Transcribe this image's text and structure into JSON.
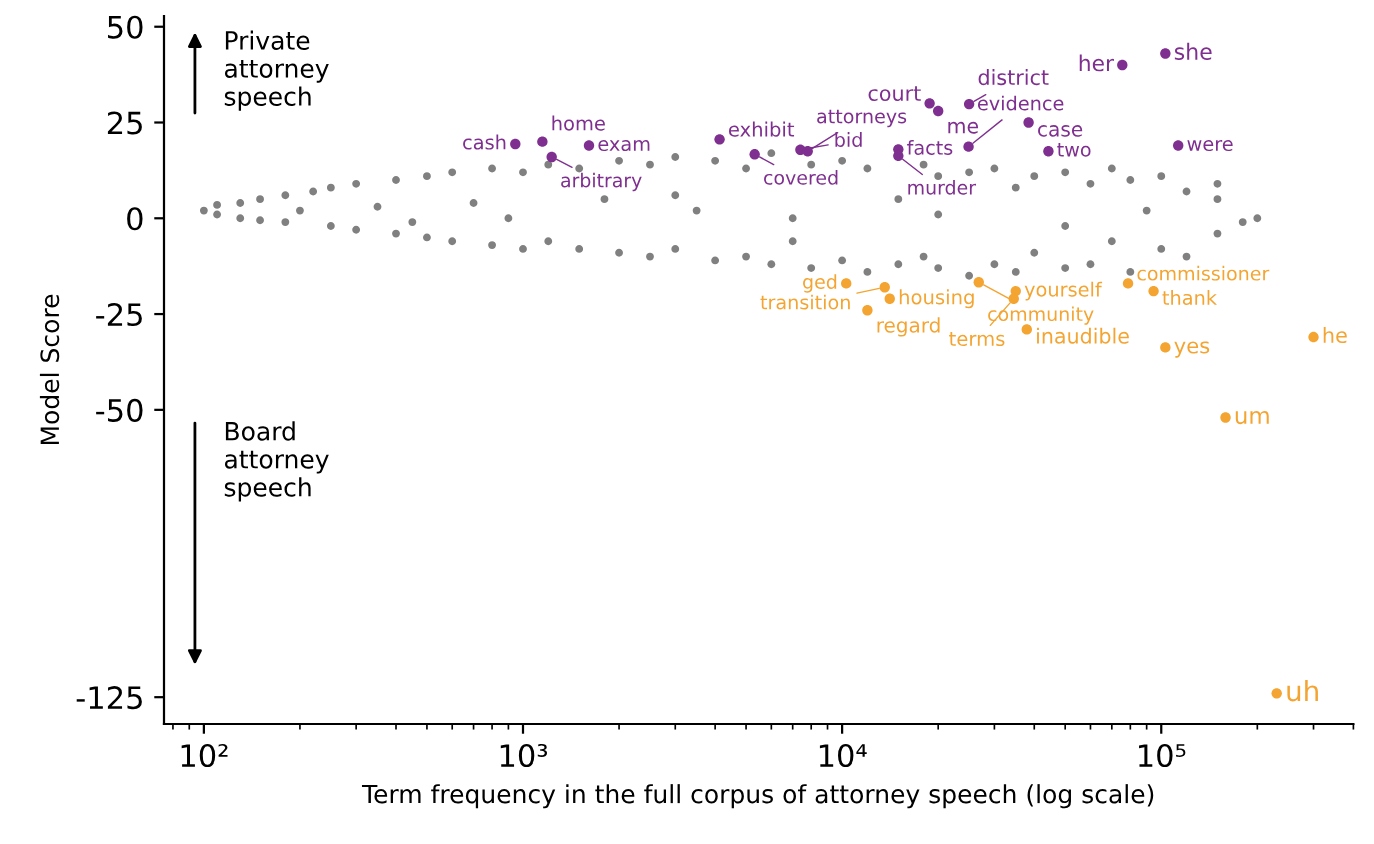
{
  "chart_data": [
    {
      "type": "scatter",
      "ylabel": "Model Score",
      "xlabel": "Term frequency in the full corpus of attorney speech (log scale)",
      "log": "x",
      "xlim": [
        75,
        400000
      ],
      "xticks": [
        {
          "value": 100,
          "label": "10²"
        },
        {
          "value": 1000,
          "label": "10³"
        },
        {
          "value": 10000,
          "label": "10⁴"
        },
        {
          "value": 100000,
          "label": "10⁵"
        }
      ],
      "ylim": [
        -132,
        52.8
      ],
      "yticks": [
        50,
        25,
        0,
        -25,
        -50,
        -125
      ],
      "grid": false,
      "legend": false,
      "marker": "circle",
      "series": [
        {
          "color": "#808080",
          "x": [
            100,
            110,
            110,
            130,
            130,
            150,
            150,
            180,
            180,
            200,
            220,
            250,
            250,
            300,
            300,
            350,
            400,
            400,
            450,
            500,
            500,
            600,
            600,
            700,
            800,
            800,
            900,
            1000,
            1000,
            1200,
            1200,
            1500,
            1500,
            1800,
            2000,
            2000,
            2500,
            2500,
            3000,
            3000,
            3500,
            4000,
            4000,
            5000,
            5000,
            6000,
            6000,
            7000,
            8000,
            8000,
            10000,
            10000,
            12000,
            12000,
            15000,
            15000,
            18000,
            18000,
            20000,
            20000,
            25000,
            25000,
            30000,
            30000,
            35000,
            35000,
            40000,
            40000,
            50000,
            50000,
            60000,
            60000,
            70000,
            70000,
            80000,
            80000,
            100000,
            100000,
            120000,
            120000,
            150000,
            150000,
            180000,
            200000,
            150000,
            90000,
            50000,
            20000,
            7000,
            3000
          ],
          "values": [
            2,
            1,
            3.5,
            0,
            4,
            5,
            -0.5,
            6,
            -1,
            2,
            7,
            -2,
            8,
            9,
            -3,
            3,
            10,
            -4,
            -1,
            11,
            -5,
            12,
            -6,
            4,
            13,
            -7,
            0,
            12,
            -8,
            14,
            -6,
            13,
            -8,
            5,
            15,
            -9,
            14,
            -10,
            16,
            -8,
            2,
            15,
            -11,
            13,
            -10,
            17,
            -12,
            0,
            14,
            -13,
            15,
            -11,
            13,
            -14,
            5,
            -12,
            14,
            -10,
            11,
            -13,
            12,
            -15,
            13,
            -12,
            8,
            -14,
            11,
            -9,
            12,
            -13,
            9,
            -12,
            13,
            -6,
            10,
            -14,
            11,
            -8,
            7,
            -10,
            5,
            -4,
            -1,
            0,
            9,
            2,
            -2,
            1,
            -6,
            6
          ]
        },
        {
          "color": "#7f2f8f",
          "x": [
            946,
            1150,
            1610,
            1230,
            4130,
            5320,
            7400,
            7800,
            15000,
            15000,
            24900,
            44300,
            38400,
            18800,
            20000,
            25000,
            75500,
            103000,
            113000
          ],
          "values": [
            19.4,
            20,
            19,
            16,
            20.6,
            16.7,
            17.9,
            17.5,
            18,
            16.3,
            18.7,
            17.5,
            25,
            30,
            28,
            29.8,
            40,
            43,
            19
          ]
        },
        {
          "color": "#f4a431",
          "x": [
            10300,
            13600,
            14100,
            12000,
            26800,
            35000,
            34500,
            78700,
            94600,
            37900,
            103000,
            300000,
            159000,
            230000
          ],
          "values": [
            -17,
            -18,
            -21,
            -24,
            -16.7,
            -19,
            -21,
            -17,
            -19,
            -29,
            -33.7,
            -31,
            -52,
            -124
          ]
        }
      ],
      "annotations": [
        "Private\nattorney\nspeech",
        "Board\nattorney\nspeech",
        {
          "text": "cash",
          "x": 946,
          "y": 19.4
        },
        {
          "text": "home",
          "x": 1150,
          "y": 20
        },
        {
          "text": "exam",
          "x": 1610,
          "y": 19
        },
        {
          "text": "arbitrary",
          "x": 1230,
          "y": 16
        },
        {
          "text": "exhibit",
          "x": 4130,
          "y": 20.6
        },
        {
          "text": "covered",
          "x": 5320,
          "y": 16.7
        },
        {
          "text": "bid",
          "x": 7400,
          "y": 17.9
        },
        {
          "text": "attorneys",
          "x": 7800,
          "y": 17.5
        },
        {
          "text": "facts",
          "x": 15000,
          "y": 18
        },
        {
          "text": "murder",
          "x": 15000,
          "y": 16.3
        },
        {
          "text": "evidence",
          "x": 24900,
          "y": 18.7
        },
        {
          "text": "two",
          "x": 44300,
          "y": 17.5
        },
        {
          "text": "case",
          "x": 38400,
          "y": 25
        },
        {
          "text": "court",
          "x": 18800,
          "y": 30
        },
        {
          "text": "me",
          "x": 20000,
          "y": 28
        },
        {
          "text": "district",
          "x": 25000,
          "y": 29.8
        },
        {
          "text": "her",
          "x": 75500,
          "y": 40
        },
        {
          "text": "she",
          "x": 103000,
          "y": 43
        },
        {
          "text": "were",
          "x": 113000,
          "y": 19
        },
        {
          "text": "ged",
          "x": 10300,
          "y": -17
        },
        {
          "text": "transition",
          "x": 13600,
          "y": -18
        },
        {
          "text": "housing",
          "x": 14100,
          "y": -21
        },
        {
          "text": "regard",
          "x": 12000,
          "y": -24
        },
        {
          "text": "community",
          "x": 26800,
          "y": -16.7
        },
        {
          "text": "yourself",
          "x": 35000,
          "y": -19
        },
        {
          "text": "terms",
          "x": 34500,
          "y": -21
        },
        {
          "text": "commissioner",
          "x": 78700,
          "y": -17
        },
        {
          "text": "thank",
          "x": 94600,
          "y": -19
        },
        {
          "text": "inaudible",
          "x": 37900,
          "y": -29
        },
        {
          "text": "yes",
          "x": 103000,
          "y": -33.7
        },
        {
          "text": "he",
          "x": 300000,
          "y": -31
        },
        {
          "text": "um",
          "x": 159000,
          "y": -52
        },
        {
          "text": "uh",
          "x": 230000,
          "y": -124
        }
      ]
    }
  ]
}
